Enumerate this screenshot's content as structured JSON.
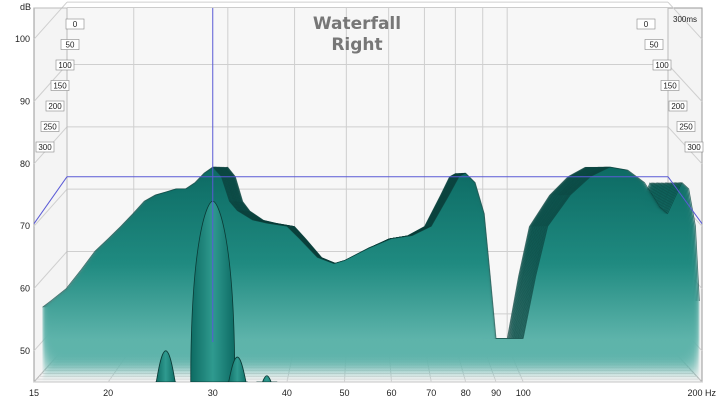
{
  "chart_data": {
    "type": "area",
    "title": "Waterfall",
    "subtitle": "Right",
    "ylabel": "dB",
    "xunit": "Hz",
    "x_scale": "log",
    "xlim": [
      15,
      200
    ],
    "ylim": [
      45,
      105
    ],
    "grid": true,
    "cursor": {
      "x": 30,
      "y": 72
    },
    "x_ticks": [
      {
        "value": 15,
        "label": "15"
      },
      {
        "value": 20,
        "label": "20"
      },
      {
        "value": 30,
        "label": "30"
      },
      {
        "value": 40,
        "label": "40"
      },
      {
        "value": 50,
        "label": "50"
      },
      {
        "value": 60,
        "label": "60"
      },
      {
        "value": 70,
        "label": "70"
      },
      {
        "value": 80,
        "label": "80"
      },
      {
        "value": 90,
        "label": "90"
      },
      {
        "value": 100,
        "label": "100"
      },
      {
        "value": 200,
        "label": "200 Hz"
      }
    ],
    "y_ticks": [
      {
        "value": 50,
        "label": "50"
      },
      {
        "value": 60,
        "label": "60"
      },
      {
        "value": 70,
        "label": "70"
      },
      {
        "value": 80,
        "label": "80"
      },
      {
        "value": 90,
        "label": "90"
      },
      {
        "value": 100,
        "label": "100"
      }
    ],
    "time_ticks_left": [
      "0",
      "50",
      "100",
      "150",
      "200",
      "250",
      "300"
    ],
    "time_ticks_right": [
      "0",
      "50",
      "100",
      "150",
      "200",
      "250",
      "300"
    ],
    "time_unit_label": "300ms",
    "color": "#1f8a80",
    "surface_front": [
      [
        15.5,
        57
      ],
      [
        16,
        58
      ],
      [
        17,
        60
      ],
      [
        18,
        63
      ],
      [
        19,
        66
      ],
      [
        20,
        68
      ],
      [
        21,
        70
      ],
      [
        22,
        72
      ],
      [
        23,
        74
      ],
      [
        24,
        75
      ],
      [
        25,
        75.5
      ],
      [
        26,
        76
      ],
      [
        27,
        76
      ],
      [
        28,
        77
      ],
      [
        29,
        78.5
      ],
      [
        30,
        79.5
      ],
      [
        31,
        78
      ],
      [
        32,
        74
      ],
      [
        33,
        72.5
      ],
      [
        35,
        71
      ],
      [
        37,
        70.5
      ],
      [
        40,
        70
      ],
      [
        42,
        68
      ],
      [
        45,
        65
      ],
      [
        48,
        64
      ],
      [
        50,
        64.5
      ],
      [
        55,
        66.5
      ],
      [
        60,
        68
      ],
      [
        65,
        68.5
      ],
      [
        70,
        70
      ],
      [
        75,
        75
      ],
      [
        78,
        78
      ],
      [
        80,
        78.5
      ],
      [
        83,
        77
      ],
      [
        86,
        72
      ],
      [
        88,
        62
      ],
      [
        90,
        52
      ],
      [
        95,
        52
      ],
      [
        100,
        52
      ],
      [
        105,
        62
      ],
      [
        110,
        70
      ],
      [
        120,
        75
      ],
      [
        130,
        78
      ],
      [
        140,
        79.5
      ],
      [
        150,
        79
      ],
      [
        160,
        77
      ],
      [
        170,
        73
      ],
      [
        175,
        72
      ],
      [
        185,
        77
      ],
      [
        190,
        76
      ],
      [
        195,
        70
      ],
      [
        198,
        58
      ]
    ],
    "resonance_peaks": [
      {
        "center": 30,
        "level": 74
      },
      {
        "center": 25,
        "level": 50
      },
      {
        "center": 33,
        "level": 49
      },
      {
        "center": 37,
        "level": 46
      }
    ]
  }
}
